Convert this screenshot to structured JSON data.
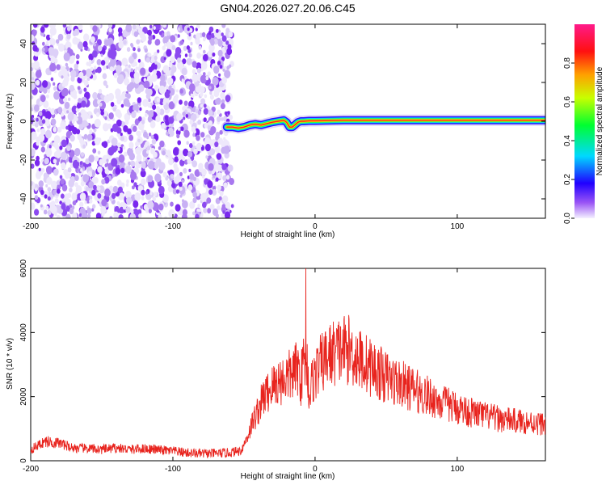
{
  "figure": {
    "title": "GN04.2026.027.20.06.C45"
  },
  "chart_data": [
    {
      "type": "heatmap",
      "xlabel": "Height of straight line (km)",
      "ylabel": "Frequency (Hz)",
      "xlim": [
        -200,
        162
      ],
      "ylim": [
        -50,
        50
      ],
      "xticks": [
        -200,
        -100,
        0,
        100
      ],
      "xtick_labels": [
        "-200",
        "-100",
        "0",
        "100"
      ],
      "yticks": [
        -40,
        -20,
        0,
        20,
        40
      ],
      "ytick_labels": [
        "-40",
        "-20",
        "0",
        "20",
        "40"
      ],
      "colorbar": {
        "label": "Normalized spectral amplitude",
        "range": [
          0.0,
          1.0
        ],
        "ticks": [
          0.0,
          0.2,
          0.4,
          0.6,
          0.8
        ],
        "tick_labels": [
          "0.0",
          "0.2",
          "0.4",
          "0.6",
          "0.8"
        ],
        "colors": [
          "#e6e0f8",
          "#6a00f0",
          "#0000ff",
          "#00e0ff",
          "#00ff00",
          "#ffff00",
          "#ff8000",
          "#ff0000",
          "#ff1a8a"
        ]
      },
      "noise_region_x": [
        -200,
        -58
      ],
      "ridge": {
        "x": [
          -62,
          -58,
          -54,
          -50,
          -46,
          -42,
          -38,
          -34,
          -30,
          -26,
          -22,
          -20,
          -18,
          -16,
          -12,
          -10,
          -8,
          -4,
          0,
          20,
          60,
          100,
          140,
          162
        ],
        "y": [
          -3,
          -3,
          -3.5,
          -3,
          -2,
          -1.5,
          -2,
          -1.2,
          -0.5,
          0,
          0.5,
          -0.5,
          -3,
          -3,
          -0.5,
          0,
          0,
          0.2,
          0.2,
          0.5,
          0.5,
          0.5,
          0.5,
          0.5
        ]
      },
      "grid": false
    },
    {
      "type": "line",
      "xlabel": "Height of straight line (km)",
      "ylabel": "SNR (10 * v/v)",
      "xlim": [
        -200,
        162
      ],
      "ylim": [
        0,
        6000
      ],
      "xticks": [
        -200,
        -100,
        0,
        100
      ],
      "xtick_labels": [
        "-200",
        "-100",
        "0",
        "100"
      ],
      "yticks": [
        0,
        2000,
        4000,
        6000
      ],
      "ytick_labels": [
        "0",
        "2000",
        "4000",
        "6000"
      ],
      "series": [
        {
          "color": "#e8241e",
          "x": [
            -200,
            -190,
            -180,
            -170,
            -160,
            -150,
            -140,
            -130,
            -120,
            -110,
            -100,
            -90,
            -80,
            -70,
            -60,
            -52,
            -48,
            -44,
            -40,
            -36,
            -32,
            -28,
            -24,
            -20,
            -16,
            -12,
            -10,
            -8,
            -6,
            -4,
            -2,
            0,
            4,
            8,
            12,
            16,
            20,
            24,
            30,
            40,
            50,
            60,
            70,
            80,
            90,
            100,
            110,
            120,
            130,
            140,
            150,
            162
          ],
          "y": [
            350,
            600,
            550,
            400,
            380,
            350,
            400,
            350,
            380,
            340,
            300,
            250,
            220,
            230,
            250,
            320,
            700,
            1200,
            1600,
            2000,
            2200,
            2400,
            2500,
            2600,
            2700,
            2900,
            2500,
            3100,
            3300,
            2000,
            2500,
            2700,
            3000,
            3200,
            3350,
            3400,
            3500,
            3450,
            3200,
            2900,
            2600,
            2400,
            2200,
            2000,
            1800,
            1650,
            1500,
            1400,
            1300,
            1250,
            1200,
            1150
          ]
        }
      ],
      "grid": false
    }
  ]
}
